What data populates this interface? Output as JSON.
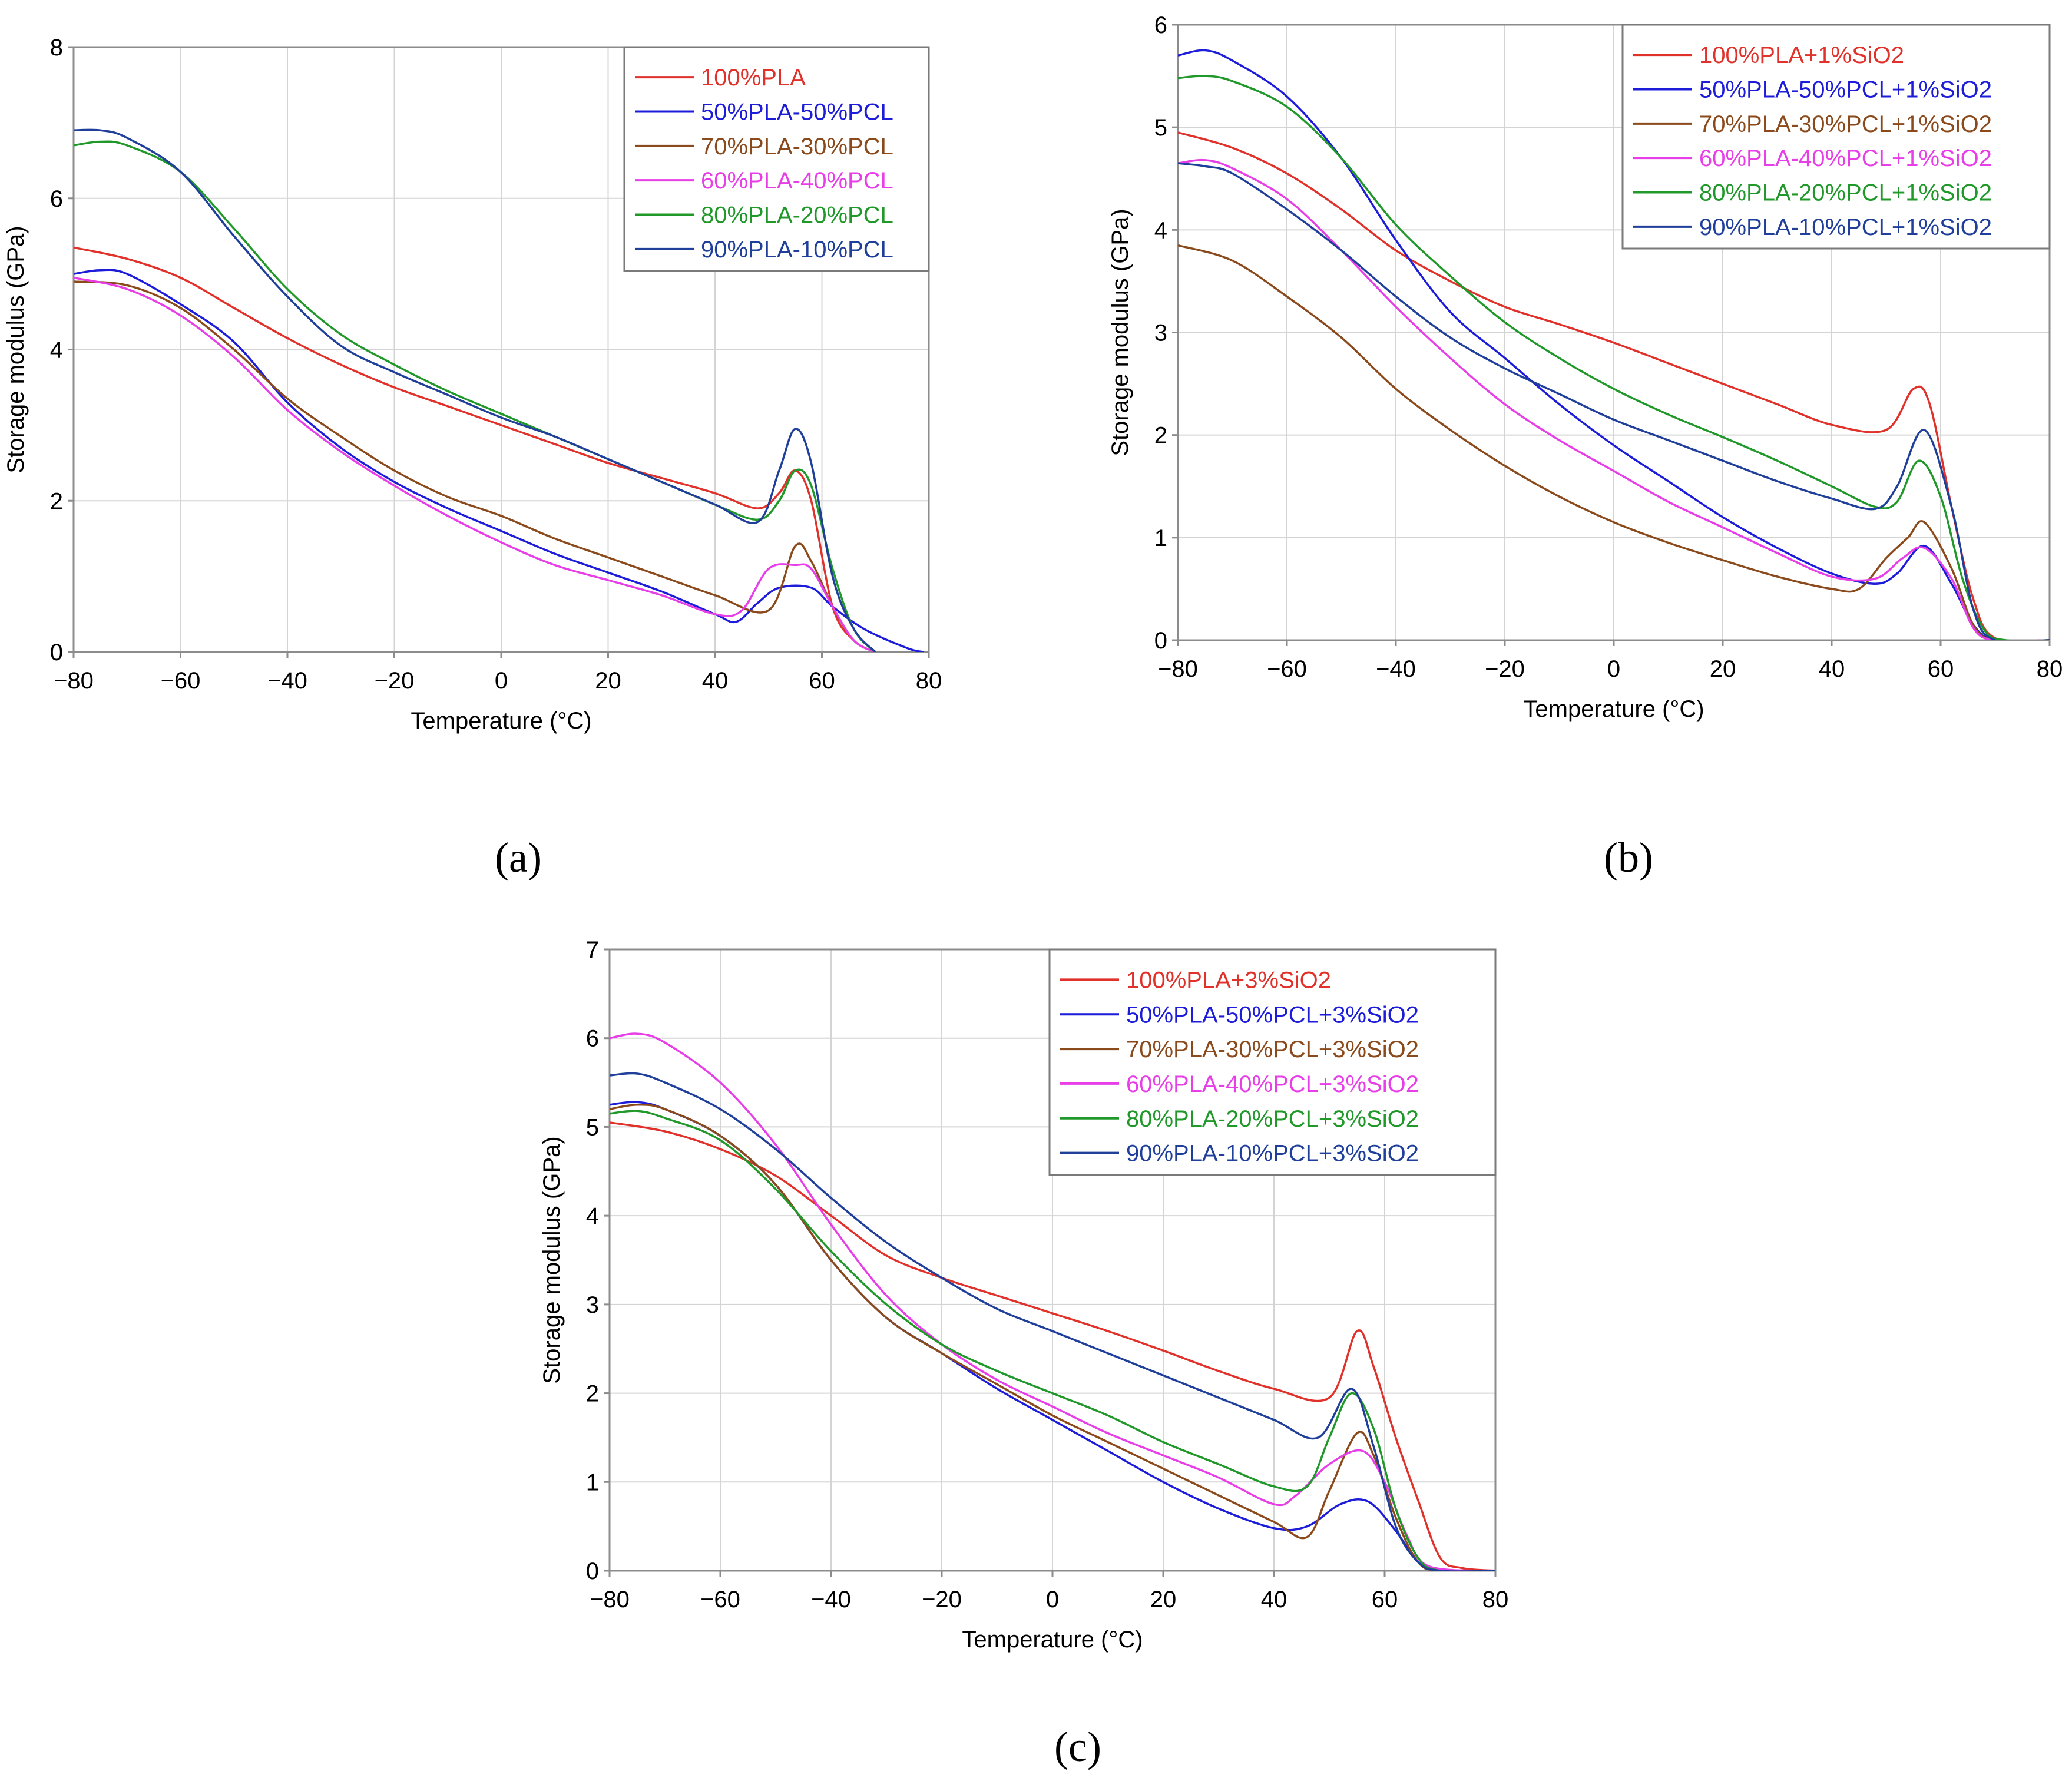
{
  "figure": {
    "panels": [
      "(a)",
      "(b)",
      "(c)"
    ],
    "colors": {
      "red": "#e0312b",
      "blue": "#1c1cd9",
      "brown": "#8b4a1c",
      "magenta": "#e83ee8",
      "green": "#20982a",
      "navy": "#1f3f9a",
      "grid": "#d4d4d4",
      "axis": "#8c8c8c"
    }
  },
  "chart_data": [
    {
      "type": "line",
      "panel_label": "(a)",
      "xlabel": "Temperature (°C)",
      "ylabel": "Storage modulus (GPa)",
      "xlim": [
        -80,
        80
      ],
      "ylim": [
        0,
        8
      ],
      "xticks": [
        -80,
        -60,
        -40,
        -20,
        0,
        20,
        40,
        60,
        80
      ],
      "yticks": [
        0,
        2,
        4,
        6,
        8
      ],
      "xtick_labels": [
        "−80",
        "−60",
        "−40",
        "−20",
        "0",
        "20",
        "40",
        "60",
        "80"
      ],
      "ytick_labels": [
        "0",
        "2",
        "4",
        "6",
        "8"
      ],
      "legend_position": "top-right",
      "series": [
        {
          "name": "100%PLA",
          "color": "#e0312b",
          "x": [
            -80,
            -70,
            -60,
            -50,
            -40,
            -30,
            -20,
            -10,
            0,
            10,
            20,
            30,
            40,
            48,
            52,
            55,
            58,
            62,
            66,
            70
          ],
          "y": [
            5.35,
            5.2,
            4.95,
            4.55,
            4.15,
            3.8,
            3.5,
            3.25,
            3.0,
            2.75,
            2.5,
            2.3,
            2.1,
            1.9,
            2.1,
            2.4,
            2.0,
            0.6,
            0.15,
            0.0
          ]
        },
        {
          "name": "50%PLA-50%PCL",
          "color": "#1c1cd9",
          "x": [
            -80,
            -75,
            -70,
            -60,
            -50,
            -40,
            -30,
            -20,
            -10,
            0,
            10,
            20,
            30,
            40,
            44,
            48,
            52,
            58,
            62,
            68,
            76,
            79
          ],
          "y": [
            5.0,
            5.05,
            5.0,
            4.6,
            4.1,
            3.3,
            2.7,
            2.25,
            1.9,
            1.6,
            1.3,
            1.05,
            0.8,
            0.5,
            0.4,
            0.65,
            0.85,
            0.85,
            0.6,
            0.3,
            0.05,
            0.0
          ]
        },
        {
          "name": "70%PLA-30%PCL",
          "color": "#8b4a1c",
          "x": [
            -80,
            -70,
            -60,
            -50,
            -40,
            -30,
            -20,
            -10,
            0,
            10,
            20,
            30,
            40,
            50,
            55,
            58,
            62,
            66,
            70
          ],
          "y": [
            4.9,
            4.85,
            4.55,
            4.0,
            3.35,
            2.85,
            2.4,
            2.05,
            1.8,
            1.5,
            1.25,
            1.0,
            0.75,
            0.55,
            1.4,
            1.2,
            0.6,
            0.15,
            0.0
          ]
        },
        {
          "name": "60%PLA-40%PCL",
          "color": "#e83ee8",
          "x": [
            -80,
            -70,
            -60,
            -50,
            -40,
            -30,
            -20,
            -10,
            0,
            10,
            20,
            30,
            40,
            45,
            50,
            55,
            58,
            62,
            66,
            70
          ],
          "y": [
            4.95,
            4.8,
            4.45,
            3.9,
            3.2,
            2.65,
            2.2,
            1.8,
            1.45,
            1.15,
            0.95,
            0.75,
            0.5,
            0.55,
            1.1,
            1.15,
            1.1,
            0.6,
            0.15,
            0.0
          ]
        },
        {
          "name": "80%PLA-20%PCL",
          "color": "#20982a",
          "x": [
            -80,
            -75,
            -70,
            -60,
            -50,
            -40,
            -30,
            -20,
            -10,
            0,
            10,
            20,
            30,
            40,
            48,
            52,
            55,
            58,
            62,
            66,
            70
          ],
          "y": [
            6.7,
            6.75,
            6.7,
            6.35,
            5.6,
            4.8,
            4.2,
            3.8,
            3.45,
            3.15,
            2.85,
            2.55,
            2.25,
            1.95,
            1.75,
            2.0,
            2.4,
            2.2,
            1.1,
            0.3,
            0.0
          ]
        },
        {
          "name": "90%PLA-10%PCL",
          "color": "#1f3f9a",
          "x": [
            -80,
            -75,
            -70,
            -60,
            -50,
            -40,
            -30,
            -20,
            -10,
            0,
            10,
            20,
            30,
            40,
            48,
            52,
            55,
            58,
            62,
            66,
            70
          ],
          "y": [
            6.9,
            6.9,
            6.8,
            6.35,
            5.5,
            4.7,
            4.05,
            3.7,
            3.4,
            3.1,
            2.85,
            2.55,
            2.25,
            1.95,
            1.72,
            2.4,
            2.95,
            2.5,
            1.0,
            0.3,
            0.0
          ]
        }
      ]
    },
    {
      "type": "line",
      "panel_label": "(b)",
      "xlabel": "Temperature (°C)",
      "ylabel": "Storage modulus (GPa)",
      "xlim": [
        -80,
        80
      ],
      "ylim": [
        0,
        6
      ],
      "xticks": [
        -80,
        -60,
        -40,
        -20,
        0,
        20,
        40,
        60,
        80
      ],
      "yticks": [
        0,
        1,
        2,
        3,
        4,
        5,
        6
      ],
      "xtick_labels": [
        "−80",
        "−60",
        "−40",
        "−20",
        "0",
        "20",
        "40",
        "60",
        "80"
      ],
      "ytick_labels": [
        "0",
        "1",
        "2",
        "3",
        "4",
        "5",
        "6"
      ],
      "legend_position": "top-right",
      "series": [
        {
          "name": "100%PLA+1%SiO2",
          "color": "#e0312b",
          "x": [
            -80,
            -70,
            -60,
            -50,
            -40,
            -30,
            -20,
            -10,
            0,
            10,
            20,
            30,
            40,
            50,
            55,
            58,
            62,
            66,
            70,
            80
          ],
          "y": [
            4.95,
            4.8,
            4.55,
            4.2,
            3.8,
            3.5,
            3.25,
            3.08,
            2.9,
            2.7,
            2.5,
            2.3,
            2.1,
            2.05,
            2.45,
            2.3,
            1.3,
            0.4,
            0.02,
            0.0
          ]
        },
        {
          "name": "50%PLA-50%PCL+1%SiO2",
          "color": "#1c1cd9",
          "x": [
            -80,
            -75,
            -70,
            -60,
            -50,
            -40,
            -30,
            -20,
            -10,
            0,
            10,
            20,
            30,
            40,
            48,
            52,
            57,
            62,
            66,
            70,
            80
          ],
          "y": [
            5.7,
            5.75,
            5.65,
            5.3,
            4.7,
            3.9,
            3.2,
            2.75,
            2.3,
            1.9,
            1.55,
            1.2,
            0.9,
            0.65,
            0.55,
            0.65,
            0.92,
            0.55,
            0.15,
            0.0,
            0.0
          ]
        },
        {
          "name": "70%PLA-30%PCL+1%SiO2",
          "color": "#8b4a1c",
          "x": [
            -80,
            -70,
            -60,
            -50,
            -40,
            -30,
            -20,
            -10,
            0,
            10,
            20,
            30,
            40,
            45,
            50,
            54,
            57,
            62,
            66,
            70,
            80
          ],
          "y": [
            3.85,
            3.7,
            3.35,
            2.95,
            2.45,
            2.05,
            1.7,
            1.4,
            1.15,
            0.95,
            0.78,
            0.62,
            0.5,
            0.5,
            0.8,
            1.0,
            1.15,
            0.7,
            0.15,
            0.0,
            0.0
          ]
        },
        {
          "name": "60%PLA-40%PCL+1%SiO2",
          "color": "#e83ee8",
          "x": [
            -80,
            -75,
            -70,
            -60,
            -50,
            -40,
            -30,
            -20,
            -10,
            0,
            10,
            20,
            30,
            40,
            48,
            53,
            57,
            62,
            66,
            70,
            80
          ],
          "y": [
            4.65,
            4.68,
            4.6,
            4.3,
            3.8,
            3.25,
            2.75,
            2.3,
            1.95,
            1.65,
            1.35,
            1.1,
            0.85,
            0.62,
            0.6,
            0.8,
            0.9,
            0.6,
            0.12,
            0.0,
            0.0
          ]
        },
        {
          "name": "80%PLA-20%PCL+1%SiO2",
          "color": "#20982a",
          "x": [
            -80,
            -75,
            -70,
            -60,
            -50,
            -40,
            -30,
            -20,
            -10,
            0,
            10,
            20,
            30,
            40,
            48,
            52,
            56,
            60,
            64,
            68,
            72,
            80
          ],
          "y": [
            5.48,
            5.5,
            5.45,
            5.2,
            4.7,
            4.05,
            3.55,
            3.1,
            2.75,
            2.45,
            2.2,
            1.98,
            1.75,
            1.5,
            1.3,
            1.35,
            1.75,
            1.4,
            0.6,
            0.1,
            0.0,
            0.0
          ]
        },
        {
          "name": "90%PLA-10%PCL+1%SiO2",
          "color": "#1f3f9a",
          "x": [
            -80,
            -75,
            -70,
            -60,
            -50,
            -40,
            -30,
            -20,
            -10,
            0,
            10,
            20,
            30,
            40,
            48,
            52,
            57,
            62,
            66,
            70,
            80
          ],
          "y": [
            4.65,
            4.62,
            4.55,
            4.2,
            3.8,
            3.35,
            2.95,
            2.65,
            2.4,
            2.15,
            1.95,
            1.75,
            1.55,
            1.38,
            1.28,
            1.5,
            2.05,
            1.3,
            0.3,
            0.0,
            0.0
          ]
        }
      ]
    },
    {
      "type": "line",
      "panel_label": "(c)",
      "xlabel": "Temperature (°C)",
      "ylabel": "Storage modulus (GPa)",
      "xlim": [
        -80,
        80
      ],
      "ylim": [
        0,
        7
      ],
      "xticks": [
        -80,
        -60,
        -40,
        -20,
        0,
        20,
        40,
        60,
        80
      ],
      "yticks": [
        0,
        1,
        2,
        3,
        4,
        5,
        6,
        7
      ],
      "xtick_labels": [
        "−80",
        "−60",
        "−40",
        "−20",
        "0",
        "20",
        "40",
        "60",
        "80"
      ],
      "ytick_labels": [
        "0",
        "1",
        "2",
        "3",
        "4",
        "5",
        "6",
        "7"
      ],
      "legend_position": "top-right",
      "series": [
        {
          "name": "100%PLA+3%SiO2",
          "color": "#e0312b",
          "x": [
            -80,
            -70,
            -60,
            -50,
            -40,
            -30,
            -20,
            -10,
            0,
            10,
            20,
            30,
            40,
            50,
            55,
            58,
            62,
            66,
            70,
            74,
            80
          ],
          "y": [
            5.05,
            4.95,
            4.75,
            4.45,
            4.0,
            3.55,
            3.3,
            3.1,
            2.9,
            2.7,
            2.48,
            2.25,
            2.05,
            1.95,
            2.7,
            2.3,
            1.5,
            0.8,
            0.15,
            0.03,
            0.0
          ]
        },
        {
          "name": "50%PLA-50%PCL+3%SiO2",
          "color": "#1c1cd9",
          "x": [
            -80,
            -75,
            -70,
            -60,
            -50,
            -40,
            -30,
            -20,
            -10,
            0,
            10,
            20,
            30,
            40,
            46,
            52,
            57,
            62,
            66,
            70,
            80
          ],
          "y": [
            5.25,
            5.28,
            5.2,
            4.9,
            4.35,
            3.5,
            2.85,
            2.45,
            2.05,
            1.7,
            1.35,
            1.0,
            0.7,
            0.48,
            0.5,
            0.75,
            0.78,
            0.45,
            0.1,
            0.0,
            0.0
          ]
        },
        {
          "name": "70%PLA-30%PCL+3%SiO2",
          "color": "#8b4a1c",
          "x": [
            -80,
            -75,
            -70,
            -60,
            -50,
            -40,
            -30,
            -20,
            -10,
            0,
            10,
            20,
            30,
            40,
            46,
            50,
            55,
            58,
            62,
            66,
            70,
            80
          ],
          "y": [
            5.2,
            5.25,
            5.2,
            4.9,
            4.35,
            3.5,
            2.85,
            2.45,
            2.1,
            1.75,
            1.45,
            1.15,
            0.85,
            0.55,
            0.38,
            0.9,
            1.55,
            1.3,
            0.6,
            0.1,
            0.0,
            0.0
          ]
        },
        {
          "name": "60%PLA-40%PCL+3%SiO2",
          "color": "#e83ee8",
          "x": [
            -80,
            -75,
            -70,
            -60,
            -50,
            -40,
            -30,
            -20,
            -10,
            0,
            10,
            20,
            30,
            40,
            44,
            50,
            56,
            60,
            64,
            68,
            80
          ],
          "y": [
            6.0,
            6.05,
            5.95,
            5.5,
            4.8,
            3.9,
            3.1,
            2.55,
            2.15,
            1.85,
            1.55,
            1.3,
            1.05,
            0.75,
            0.85,
            1.2,
            1.35,
            1.0,
            0.4,
            0.05,
            0.0
          ]
        },
        {
          "name": "80%PLA-20%PCL+3%SiO2",
          "color": "#20982a",
          "x": [
            -80,
            -75,
            -70,
            -60,
            -50,
            -40,
            -30,
            -20,
            -10,
            0,
            10,
            20,
            30,
            40,
            46,
            50,
            54,
            58,
            62,
            66,
            70,
            80
          ],
          "y": [
            5.15,
            5.18,
            5.1,
            4.85,
            4.3,
            3.6,
            3.0,
            2.55,
            2.25,
            2.0,
            1.75,
            1.45,
            1.2,
            0.95,
            0.95,
            1.5,
            2.0,
            1.6,
            0.7,
            0.15,
            0.0,
            0.0
          ]
        },
        {
          "name": "90%PLA-10%PCL+3%SiO2",
          "color": "#1f3f9a",
          "x": [
            -80,
            -75,
            -70,
            -60,
            -50,
            -40,
            -30,
            -20,
            -10,
            0,
            10,
            20,
            30,
            40,
            48,
            54,
            58,
            62,
            66,
            70,
            80
          ],
          "y": [
            5.58,
            5.6,
            5.5,
            5.2,
            4.75,
            4.2,
            3.7,
            3.3,
            2.95,
            2.7,
            2.45,
            2.2,
            1.95,
            1.7,
            1.5,
            2.05,
            1.4,
            0.5,
            0.1,
            0.0,
            0.0
          ]
        }
      ]
    }
  ]
}
